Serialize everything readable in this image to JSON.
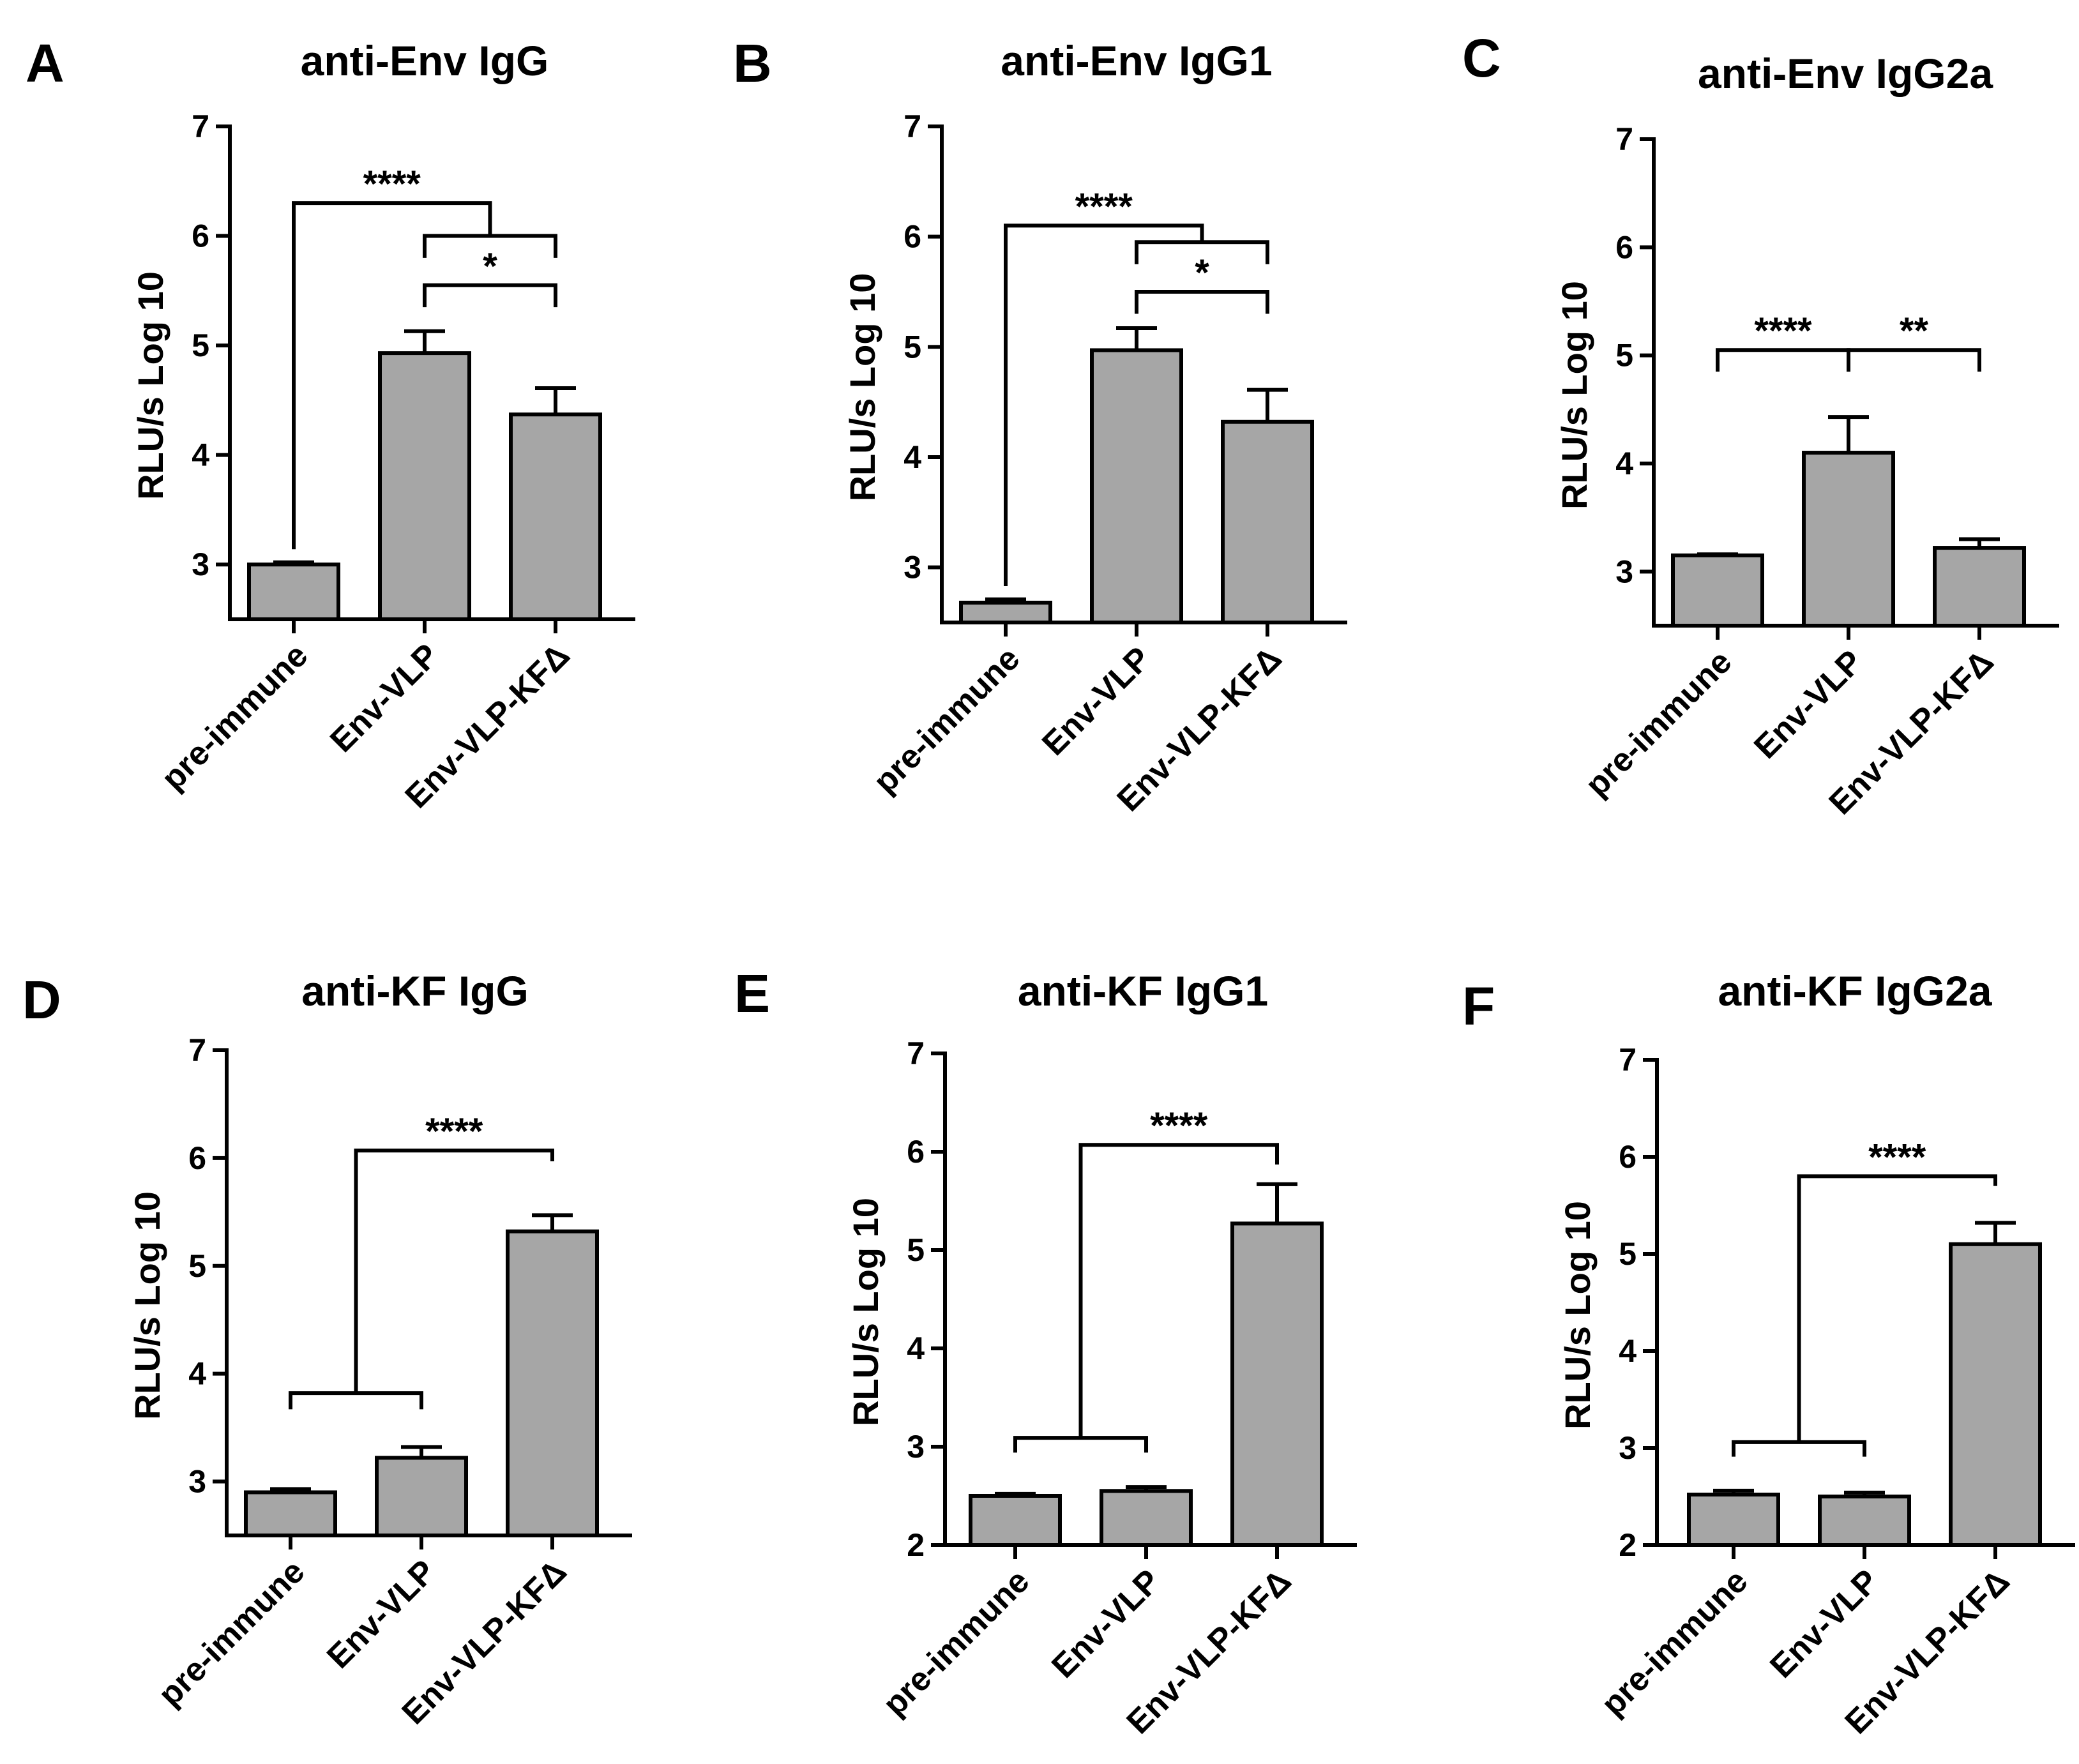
{
  "chart_data": [
    {
      "panel": "A",
      "title": "anti-Env IgG",
      "type": "bar",
      "ylabel": "RLU/s  Log 10",
      "ylim": [
        2.5,
        7
      ],
      "yticks": [
        3,
        4,
        5,
        6,
        7
      ],
      "categories": [
        "pre-immune",
        "Env-VLP",
        "Env-VLP-KFΔ"
      ],
      "values": [
        3.0,
        4.93,
        4.37
      ],
      "errors": [
        0.02,
        0.2,
        0.24
      ],
      "significance": [
        {
          "type": "group",
          "left": [
            0
          ],
          "right": [
            1,
            2
          ],
          "label": "****",
          "y": 6.3,
          "drop": 0.1
        },
        {
          "type": "pair",
          "left": [
            1
          ],
          "right": [
            2
          ],
          "label": "",
          "y": 6.0,
          "drop": 0.2
        },
        {
          "type": "pair",
          "left": [
            1
          ],
          "right": [
            2
          ],
          "label": "*",
          "y": 5.55,
          "drop": 0.2
        }
      ]
    },
    {
      "panel": "B",
      "title": "anti-Env IgG1",
      "type": "bar",
      "ylabel": "RLU/s  Log 10",
      "ylim": [
        2.5,
        7
      ],
      "yticks": [
        3,
        4,
        5,
        6,
        7
      ],
      "categories": [
        "pre-immune",
        "Env-VLP",
        "Env-VLP-KFΔ"
      ],
      "values": [
        2.68,
        4.97,
        4.32
      ],
      "errors": [
        0.03,
        0.2,
        0.29
      ],
      "significance": [
        {
          "type": "group",
          "left": [
            0
          ],
          "right": [
            1,
            2
          ],
          "label": "****",
          "y": 6.1,
          "drop": 0.12
        },
        {
          "type": "pair",
          "left": [
            1
          ],
          "right": [
            2
          ],
          "label": "",
          "y": 5.95,
          "drop": 0.2
        },
        {
          "type": "pair",
          "left": [
            1
          ],
          "right": [
            2
          ],
          "label": "*",
          "y": 5.5,
          "drop": 0.2
        }
      ]
    },
    {
      "panel": "C",
      "title": "anti-Env IgG2a",
      "type": "bar",
      "ylabel": "RLU/s  Log 10",
      "ylim": [
        2.5,
        7
      ],
      "yticks": [
        3,
        4,
        5,
        6,
        7
      ],
      "categories": [
        "pre-immune",
        "Env-VLP",
        "Env-VLP-KFΔ"
      ],
      "values": [
        3.15,
        4.1,
        3.22
      ],
      "errors": [
        0.01,
        0.33,
        0.08
      ],
      "significance": [
        {
          "type": "pair",
          "left": [
            0
          ],
          "right": [
            1
          ],
          "label": "****",
          "y": 5.05,
          "drop": 0.2
        },
        {
          "type": "pair",
          "left": [
            1
          ],
          "right": [
            2
          ],
          "label": "**",
          "y": 5.05,
          "drop": 0.2
        }
      ]
    },
    {
      "panel": "D",
      "title": "anti-KF IgG",
      "type": "bar",
      "ylabel": "RLU/s  Log 10",
      "ylim": [
        2.5,
        7
      ],
      "yticks": [
        3,
        4,
        5,
        6,
        7
      ],
      "categories": [
        "pre-immune",
        "Env-VLP",
        "Env-VLP-KFΔ"
      ],
      "values": [
        2.9,
        3.22,
        5.32
      ],
      "errors": [
        0.03,
        0.1,
        0.15
      ],
      "significance": [
        {
          "type": "group",
          "left": [
            0,
            1
          ],
          "right": [
            2
          ],
          "label": "****",
          "y": 6.07,
          "drop": 0.1
        }
      ]
    },
    {
      "panel": "E",
      "title": "anti-KF IgG1",
      "type": "bar",
      "ylabel": "RLU/s  Log 10",
      "ylim": [
        2,
        7
      ],
      "yticks": [
        2,
        3,
        4,
        5,
        6,
        7
      ],
      "categories": [
        "pre-immune",
        "Env-VLP",
        "Env-VLP-KFΔ"
      ],
      "values": [
        2.5,
        2.55,
        5.27
      ],
      "errors": [
        0.02,
        0.04,
        0.4
      ],
      "significance": [
        {
          "type": "group",
          "left": [
            0,
            1
          ],
          "right": [
            2
          ],
          "label": "****",
          "y": 6.07,
          "drop": 0.2
        }
      ]
    },
    {
      "panel": "F",
      "title": "anti-KF IgG2a",
      "type": "bar",
      "ylabel": "RLU/s  Log 10",
      "ylim": [
        2,
        7
      ],
      "yticks": [
        2,
        3,
        4,
        5,
        6,
        7
      ],
      "categories": [
        "pre-immune",
        "Env-VLP",
        "Env-VLP-KFΔ"
      ],
      "values": [
        2.52,
        2.5,
        5.1
      ],
      "errors": [
        0.04,
        0.04,
        0.22
      ],
      "significance": [
        {
          "type": "group",
          "left": [
            0,
            1
          ],
          "right": [
            2
          ],
          "label": "****",
          "y": 5.8,
          "drop": 0.1
        }
      ]
    }
  ],
  "colors": {
    "bar_fill": "#a6a6a6",
    "stroke": "#000000",
    "background": "#ffffff"
  }
}
